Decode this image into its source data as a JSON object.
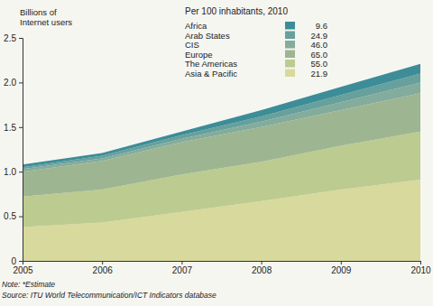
{
  "chart_data": {
    "type": "area",
    "stacked": true,
    "grid": false,
    "legend_title": "Per 100 inhabitants, 2010",
    "y_label": [
      "Billions of",
      "Internet users"
    ],
    "notes": [
      "Note: *Estimate",
      "Source: ITU World Telecommunication/ICT Indicators database"
    ],
    "x": [
      2005,
      2006,
      2007,
      2008,
      2009,
      2010
    ],
    "xlim": [
      2005,
      2010
    ],
    "xticks": [
      2005,
      2006,
      2007,
      2008,
      2009,
      2010
    ],
    "ylim": [
      0,
      2.5
    ],
    "yticks": [
      0,
      0.5,
      {
        "value": 1,
        "label": "1.0"
      },
      1.5,
      {
        "value": 2,
        "label": "2.0"
      },
      2.5
    ],
    "series": [
      {
        "name": "Africa",
        "color": "#3c8d97",
        "per_100": 9.6,
        "values": [
          0.03,
          0.03,
          0.04,
          0.07,
          0.09,
          0.11
        ]
      },
      {
        "name": "Arab States",
        "color": "#67a09c",
        "per_100": 24.9,
        "values": [
          0.02,
          0.03,
          0.04,
          0.06,
          0.08,
          0.1
        ]
      },
      {
        "name": "CIS",
        "color": "#84ac9c",
        "per_100": {
          "value": 46,
          "label": "46.0"
        },
        "values": [
          0.03,
          0.03,
          0.04,
          0.06,
          0.09,
          0.12
        ]
      },
      {
        "name": "Europe",
        "color": "#9db691",
        "per_100": {
          "value": 65,
          "label": "65.0"
        },
        "values": [
          0.28,
          0.32,
          0.36,
          0.39,
          0.4,
          0.43
        ]
      },
      {
        "name": "The Americas",
        "color": "#bccb90",
        "per_100": {
          "value": 55,
          "label": "55.0"
        },
        "values": [
          0.34,
          0.37,
          0.42,
          0.44,
          0.49,
          0.54
        ]
      },
      {
        "name": "Asia & Pacific",
        "color": "#d8d99c",
        "per_100": 21.9,
        "values": [
          0.38,
          0.43,
          0.55,
          0.67,
          0.8,
          0.91
        ]
      }
    ]
  }
}
